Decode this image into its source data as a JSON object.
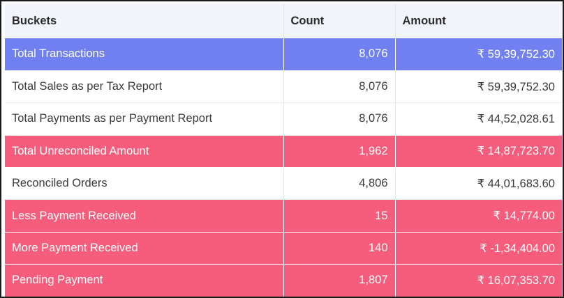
{
  "table": {
    "headers": {
      "bucket": "Buckets",
      "count": "Count",
      "amount": "Amount"
    },
    "row_colors": {
      "header": "#f2f4fb",
      "highlight_blue": "#7180f0",
      "highlight_pink": "#f65c7b",
      "plain": "#ffffff"
    },
    "rows": [
      {
        "bucket": "Total Transactions",
        "count": "8,076",
        "amount": "₹ 59,39,752.30",
        "style": "blue"
      },
      {
        "bucket": "Total Sales as per Tax Report",
        "count": "8,076",
        "amount": "₹ 59,39,752.30",
        "style": "plain"
      },
      {
        "bucket": "Total Payments as per Payment Report",
        "count": "8,076",
        "amount": "₹ 44,52,028.61",
        "style": "plain"
      },
      {
        "bucket": "Total Unreconciled Amount",
        "count": "1,962",
        "amount": "₹ 14,87,723.70",
        "style": "pink"
      },
      {
        "bucket": "Reconciled Orders",
        "count": "4,806",
        "amount": "₹ 44,01,683.60",
        "style": "plain"
      },
      {
        "bucket": "Less Payment Received",
        "count": "15",
        "amount": "₹ 14,774.00",
        "style": "pink"
      },
      {
        "bucket": "More Payment Received",
        "count": "140",
        "amount": "₹ -1,34,404.00",
        "style": "pink"
      },
      {
        "bucket": "Pending Payment",
        "count": "1,807",
        "amount": "₹ 16,07,353.70",
        "style": "pink"
      }
    ]
  }
}
